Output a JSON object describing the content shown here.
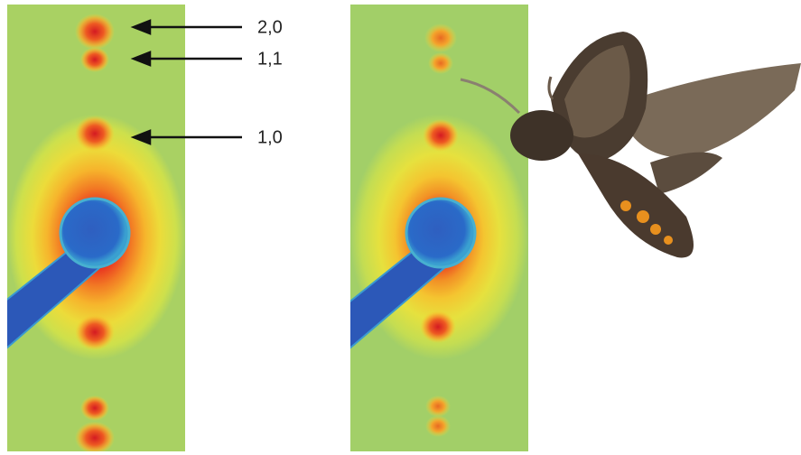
{
  "annotations": {
    "labels": [
      "2,0",
      "1,1",
      "1,0"
    ]
  }
}
